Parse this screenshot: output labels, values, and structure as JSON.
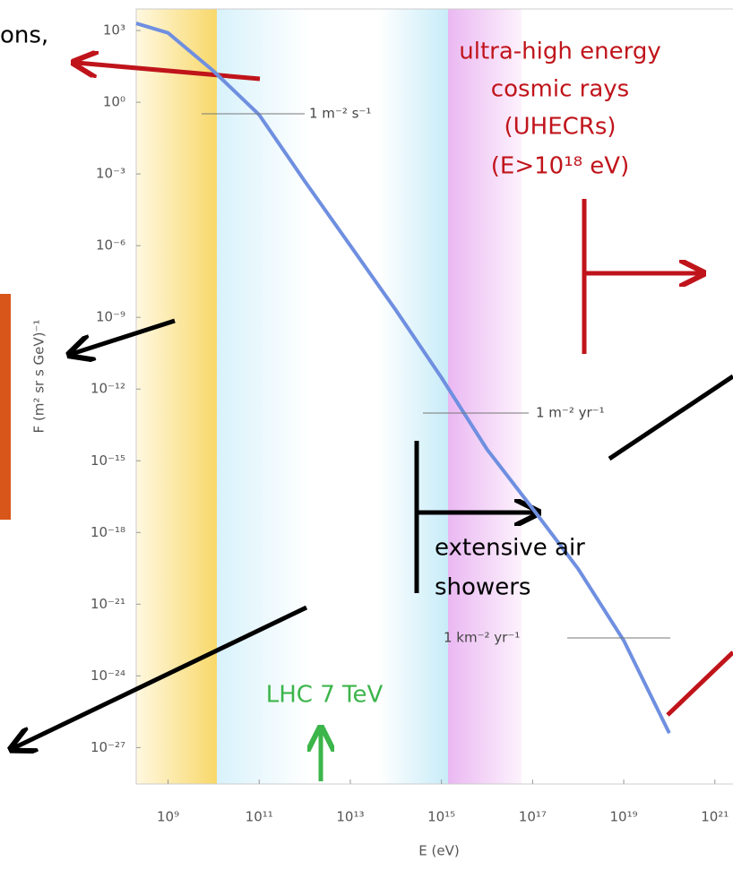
{
  "chart_data": {
    "type": "line",
    "xlabel": "E (eV)",
    "ylabel": "F (m² sr s GeV)⁻¹",
    "xscale": "log",
    "yscale": "log",
    "xlim": [
      200000000.0,
      2.5e+21
    ],
    "ylim": [
      3e-29,
      8000
    ],
    "xticks": [
      {
        "value": 1000000000.0,
        "label": "10⁹"
      },
      {
        "value": 100000000000.0,
        "label": "10¹¹"
      },
      {
        "value": 10000000000000.0,
        "label": "10¹³"
      },
      {
        "value": 1000000000000000.0,
        "label": "10¹⁵"
      },
      {
        "value": 1e+17,
        "label": "10¹⁷"
      },
      {
        "value": 1e+19,
        "label": "10¹⁹"
      },
      {
        "value": 1e+21,
        "label": "10²¹"
      }
    ],
    "yticks": [
      {
        "value": 1000,
        "label": "10³"
      },
      {
        "value": 1,
        "label": "10⁰"
      },
      {
        "value": 0.001,
        "label": "10⁻³"
      },
      {
        "value": 1e-06,
        "label": "10⁻⁶"
      },
      {
        "value": 1e-09,
        "label": "10⁻⁹"
      },
      {
        "value": 1e-12,
        "label": "10⁻¹²"
      },
      {
        "value": 1e-15,
        "label": "10⁻¹⁵"
      },
      {
        "value": 1e-18,
        "label": "10⁻¹⁸"
      },
      {
        "value": 1e-21,
        "label": "10⁻²¹"
      },
      {
        "value": 1e-24,
        "label": "10⁻²⁴"
      },
      {
        "value": 1e-27,
        "label": "10⁻²⁷"
      }
    ],
    "grid": false,
    "series": [
      {
        "color": "#6f8fe0",
        "x": [
          200000000.0,
          1000000000.0,
          10000000000.0,
          100000000000.0,
          1000000000000.0,
          10000000000000.0,
          100000000000000.0,
          1000000000000000.0,
          1e+16,
          1e+17,
          1e+18,
          1e+19,
          1e+20
        ],
        "values": [
          2000,
          800,
          20,
          0.3,
          0.0005,
          1e-06,
          2e-09,
          3e-12,
          3e-15,
          1e-17,
          3e-20,
          3e-23,
          4e-27
        ]
      }
    ],
    "reference_labels": [
      "1 m⁻² s⁻¹",
      "1 m⁻² yr⁻¹",
      "1 km⁻² yr⁻¹"
    ],
    "annotations": [
      "ons,",
      "ultra-high energy",
      "cosmic rays",
      "(UHECRs)",
      "(E>10¹⁸ eV)",
      "extensive air",
      "showers",
      "LHC 7 TeV"
    ]
  }
}
